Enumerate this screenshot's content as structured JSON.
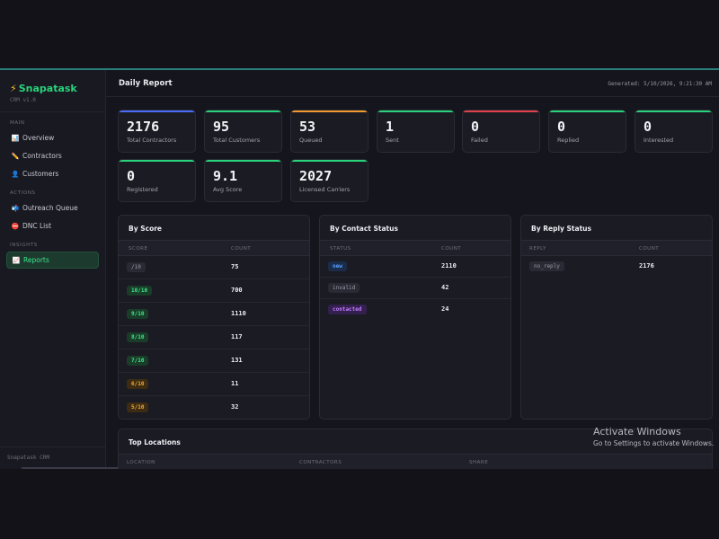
{
  "sidebar": {
    "brand": "Snapatask",
    "version": "CRM v1.0",
    "sections": {
      "main": "Main",
      "actions": "Actions",
      "insights": "Insights"
    },
    "items": {
      "overview": "Overview",
      "contractors": "Contractors",
      "customers": "Customers",
      "outreach": "Outreach Queue",
      "dnc": "DNC List",
      "reports": "Reports"
    },
    "footer": "Snapatask CRM"
  },
  "header": {
    "title": "Daily Report",
    "generated": "Generated: 5/10/2026, 9:21:30 AM"
  },
  "stats": [
    {
      "value": "2176",
      "label": "Total Contractors",
      "color": "#4a6cf7"
    },
    {
      "value": "95",
      "label": "Total Customers",
      "color": "#29d37a"
    },
    {
      "value": "53",
      "label": "Queued",
      "color": "#f29a2e"
    },
    {
      "value": "1",
      "label": "Sent",
      "color": "#29d37a"
    },
    {
      "value": "0",
      "label": "Failed",
      "color": "#e0414b"
    },
    {
      "value": "0",
      "label": "Replied",
      "color": "#29d37a"
    },
    {
      "value": "0",
      "label": "Interested",
      "color": "#29d37a"
    },
    {
      "value": "0",
      "label": "Registered",
      "color": "#29d37a"
    },
    {
      "value": "9.1",
      "label": "Avg Score",
      "color": "#29d37a"
    },
    {
      "value": "2027",
      "label": "Licensed Carriers",
      "color": "#29d37a"
    }
  ],
  "score_panel": {
    "title": "By Score",
    "col1": "Score",
    "col2": "Count",
    "rows": [
      {
        "label": "/10",
        "count": "75",
        "style": "gray"
      },
      {
        "label": "10/10",
        "count": "700",
        "style": "green"
      },
      {
        "label": "9/10",
        "count": "1110",
        "style": "green"
      },
      {
        "label": "8/10",
        "count": "117",
        "style": "green"
      },
      {
        "label": "7/10",
        "count": "131",
        "style": "green"
      },
      {
        "label": "6/10",
        "count": "11",
        "style": "amber"
      },
      {
        "label": "5/10",
        "count": "32",
        "style": "amber"
      }
    ]
  },
  "contact_panel": {
    "title": "By Contact Status",
    "col1": "Status",
    "col2": "Count",
    "rows": [
      {
        "label": "new",
        "count": "2110",
        "style": "blue"
      },
      {
        "label": "invalid",
        "count": "42",
        "style": "gray"
      },
      {
        "label": "contacted",
        "count": "24",
        "style": "purple"
      }
    ]
  },
  "reply_panel": {
    "title": "By Reply Status",
    "col1": "Reply",
    "col2": "Count",
    "rows": [
      {
        "label": "no_reply",
        "count": "2176",
        "style": "gray"
      }
    ]
  },
  "locations": {
    "title": "Top Locations",
    "col1": "Location",
    "col2": "Contractors",
    "col3": "Share"
  },
  "watermark": {
    "line1": "Activate Windows",
    "line2": "Go to Settings to activate Windows."
  }
}
